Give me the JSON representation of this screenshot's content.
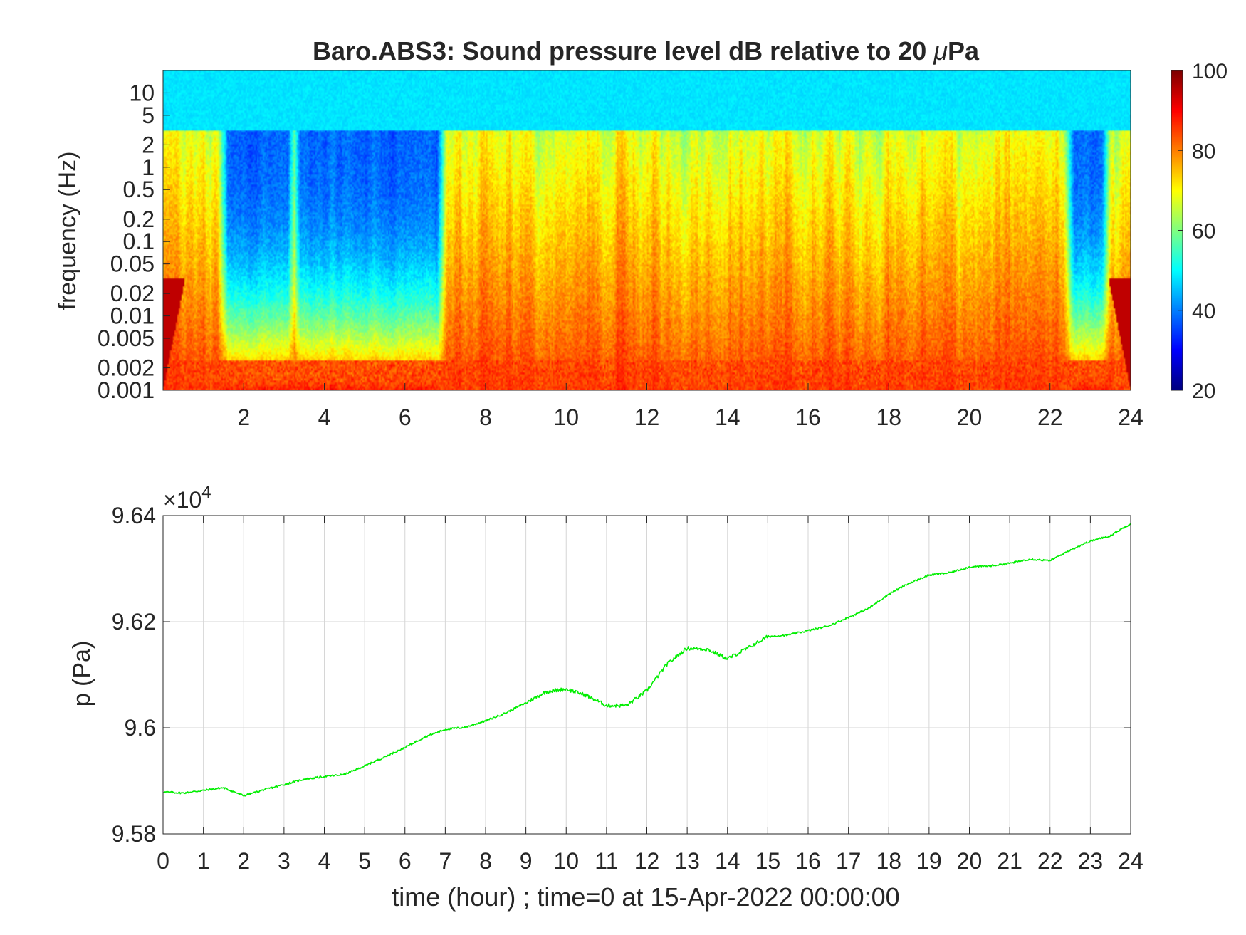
{
  "chart_data": [
    {
      "type": "heatmap",
      "title_prefix": "Baro.ABS3: Sound pressure level dB relative to 20 ",
      "title_mu": "μ",
      "title_suffix": "Pa",
      "ylabel": "frequency (Hz)",
      "xlabel": "",
      "x_range": [
        0,
        24
      ],
      "x_ticks": [
        "2",
        "4",
        "6",
        "8",
        "10",
        "12",
        "14",
        "16",
        "18",
        "20",
        "22",
        "24"
      ],
      "y_scale": "log",
      "y_range": [
        0.001,
        20
      ],
      "y_ticks": [
        "10",
        "5",
        "2",
        "1",
        "0.5",
        "0.2",
        "0.1",
        "0.05",
        "0.02",
        "0.01",
        "0.005",
        "0.002",
        "0.001"
      ],
      "colorbar": {
        "range": [
          20,
          100
        ],
        "ticks": [
          "100",
          "80",
          "60",
          "40",
          "20"
        ],
        "colormap": "jet"
      },
      "quiet_periods_hours": [
        [
          1.6,
          3.1
        ],
        [
          3.4,
          6.8
        ],
        [
          22.6,
          23.3
        ]
      ],
      "features": {
        "high_freq_band_db": 48,
        "low_freq_band_db": 88,
        "active_period_db": 85,
        "quiet_period_db": 38
      }
    },
    {
      "type": "line",
      "title": "",
      "xlabel": "time (hour) ; time=0 at 15-Apr-2022 00:00:00",
      "ylabel": "p (Pa)",
      "y_exponent_times": "×10",
      "y_exponent_power": "4",
      "x_range": [
        0,
        24
      ],
      "y_range": [
        9.58,
        9.64
      ],
      "x_ticks": [
        "0",
        "1",
        "2",
        "3",
        "4",
        "5",
        "6",
        "7",
        "8",
        "9",
        "10",
        "11",
        "12",
        "13",
        "14",
        "15",
        "16",
        "17",
        "18",
        "19",
        "20",
        "21",
        "22",
        "23",
        "24"
      ],
      "y_ticks": [
        "9.64",
        "9.62",
        "9.6",
        "9.58"
      ],
      "grid": true,
      "line_color": "#00ee00",
      "series": [
        {
          "x": [
            0,
            0.5,
            1,
            1.5,
            2,
            2.5,
            3,
            3.5,
            4,
            4.5,
            5,
            5.5,
            6,
            6.5,
            7,
            7.5,
            8,
            8.5,
            9,
            9.5,
            10,
            10.5,
            11,
            11.5,
            12,
            12.5,
            13,
            13.5,
            14,
            14.5,
            15,
            15.5,
            16,
            16.5,
            17,
            17.5,
            18,
            18.5,
            19,
            19.5,
            20,
            20.5,
            21,
            21.5,
            22,
            22.5,
            23,
            23.5,
            24
          ],
          "y": [
            9.5879,
            9.5877,
            9.5882,
            9.5887,
            9.5872,
            9.5883,
            9.5893,
            9.5903,
            9.5908,
            9.5912,
            9.5928,
            9.5945,
            9.5963,
            9.5983,
            9.5997,
            9.6001,
            9.6013,
            9.6028,
            9.6047,
            9.6068,
            9.6073,
            9.6061,
            9.6042,
            9.6042,
            9.607,
            9.612,
            9.615,
            9.6148,
            9.613,
            9.615,
            9.6172,
            9.6175,
            9.6183,
            9.6192,
            9.6208,
            9.6225,
            9.6252,
            9.6272,
            9.6288,
            9.6292,
            9.6303,
            9.6305,
            9.631,
            9.6318,
            9.6315,
            9.6335,
            9.6352,
            9.6362,
            9.6385
          ]
        }
      ]
    }
  ]
}
